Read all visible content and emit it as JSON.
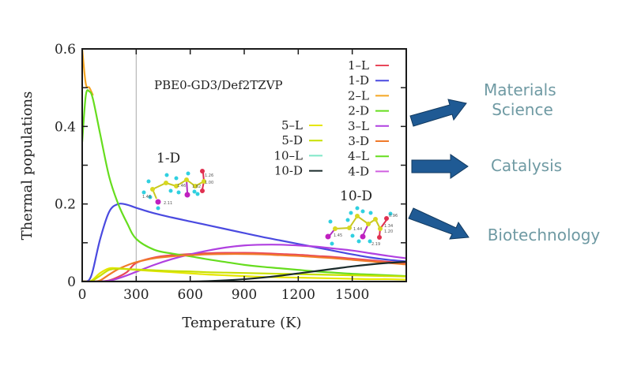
{
  "chart_data": {
    "type": "line",
    "title": "",
    "annotation": "PBE0-GD3/Def2TZVP",
    "xlabel": "Temperature (K)",
    "ylabel": "Thermal populations",
    "xlim": [
      0,
      1800
    ],
    "ylim": [
      0,
      0.6
    ],
    "xticks": [
      0,
      300,
      600,
      900,
      1200,
      1500
    ],
    "xtick_labels": [
      "0",
      "300",
      "600",
      "900",
      "1200",
      "1500"
    ],
    "yticks": [
      0,
      0.2,
      0.4,
      0.6
    ],
    "ytick_labels": [
      "0",
      "0.2",
      "0.4",
      "0.6"
    ],
    "yminor_ticks": [
      0.1,
      0.3,
      0.5
    ],
    "vertical_reference_line": 300,
    "grid": false,
    "legend_position": "top-right",
    "x": [
      0,
      20,
      40,
      60,
      100,
      150,
      200,
      250,
      300,
      400,
      500,
      600,
      700,
      800,
      900,
      1000,
      1100,
      1200,
      1300,
      1400,
      1500,
      1600,
      1700,
      1800
    ],
    "series": [
      {
        "name": "1–L",
        "color": "#e8475a",
        "values": [
          0,
          0,
          0,
          0,
          0,
          0.003,
          0.012,
          0.025,
          0.048,
          0.062,
          0.068,
          0.071,
          0.073,
          0.074,
          0.074,
          0.073,
          0.071,
          0.069,
          0.066,
          0.063,
          0.059,
          0.055,
          0.051,
          0.047
        ]
      },
      {
        "name": "1-D",
        "color": "#4a4ae0",
        "values": [
          0,
          0,
          0.005,
          0.03,
          0.11,
          0.18,
          0.2,
          0.198,
          0.19,
          0.176,
          0.165,
          0.155,
          0.145,
          0.135,
          0.125,
          0.115,
          0.106,
          0.097,
          0.088,
          0.079,
          0.07,
          0.062,
          0.056,
          0.052
        ]
      },
      {
        "name": "2–L",
        "color": "#f5a623",
        "values": [
          0.6,
          0.51,
          0.5,
          0.48,
          0,
          0,
          0,
          0,
          0,
          0,
          0,
          0,
          0,
          0,
          0,
          0,
          0,
          0,
          0,
          0,
          0,
          0,
          0,
          0
        ]
      },
      {
        "name": "2-D",
        "color": "#66dd1e",
        "values": [
          0.36,
          0.48,
          0.49,
          0.47,
          0.38,
          0.27,
          0.2,
          0.15,
          0.11,
          0.082,
          0.072,
          0.065,
          0.057,
          0.05,
          0.043,
          0.038,
          0.034,
          0.03,
          0.026,
          0.023,
          0.02,
          0.018,
          0.016,
          0.014
        ]
      },
      {
        "name": "3–L",
        "color": "#b040e0",
        "values": [
          0,
          0,
          0,
          0,
          0,
          0.002,
          0.008,
          0.016,
          0.025,
          0.043,
          0.058,
          0.07,
          0.08,
          0.088,
          0.093,
          0.095,
          0.095,
          0.093,
          0.09,
          0.085,
          0.08,
          0.073,
          0.066,
          0.06
        ]
      },
      {
        "name": "3-D",
        "color": "#f07a2a",
        "values": [
          0,
          0,
          0,
          0,
          0.003,
          0.018,
          0.032,
          0.042,
          0.05,
          0.06,
          0.065,
          0.068,
          0.07,
          0.071,
          0.071,
          0.07,
          0.068,
          0.066,
          0.063,
          0.06,
          0.056,
          0.052,
          0.048,
          0.044
        ]
      },
      {
        "name": "4–L",
        "color": "#66dd1e",
        "values": []
      },
      {
        "name": "4-D",
        "color": "#d060e0",
        "values": []
      },
      {
        "name": "5–L",
        "color": "#e6e600",
        "values": [
          0,
          0,
          0,
          0.005,
          0.022,
          0.034,
          0.034,
          0.032,
          0.03,
          0.027,
          0.024,
          0.021,
          0.018,
          0.016,
          0.014,
          0.012,
          0.011,
          0.01,
          0.009,
          0.008,
          0.007,
          0.006,
          0.006,
          0.005
        ]
      },
      {
        "name": "5-D",
        "color": "#c8e000",
        "values": [
          0,
          0,
          0,
          0.003,
          0.015,
          0.03,
          0.033,
          0.032,
          0.031,
          0.029,
          0.027,
          0.026,
          0.024,
          0.023,
          0.022,
          0.021,
          0.02,
          0.019,
          0.018,
          0.017,
          0.016,
          0.015,
          0.014,
          0.013
        ]
      },
      {
        "name": "10–L",
        "color": "#7fe8c8",
        "values": []
      },
      {
        "name": "10-D",
        "color": "#1a2a2a",
        "values": [
          0,
          0,
          0,
          0,
          0,
          0,
          0,
          0,
          0,
          0,
          0,
          0,
          0.001,
          0.003,
          0.006,
          0.01,
          0.015,
          0.021,
          0.027,
          0.033,
          0.039,
          0.044,
          0.048,
          0.051
        ]
      }
    ],
    "legend_right": [
      "1–L",
      "1-D",
      "2–L",
      "2-D",
      "3–L",
      "3-D",
      "4–L",
      "4-D"
    ],
    "legend_left": [
      "5–L",
      "5-D",
      "10–L",
      "10-D"
    ],
    "molecules": [
      {
        "label": "1-D",
        "bond_lengths": [
          "1.46",
          "2.11",
          "1.46",
          "1.82",
          "1.26",
          "1.00"
        ]
      },
      {
        "label": "10-D",
        "bond_lengths": [
          "1.45",
          "1.44",
          "0.96",
          "1.34",
          "1.20",
          "2.19"
        ]
      }
    ]
  },
  "applications": [
    {
      "label_lines": [
        "Materials",
        "Science"
      ]
    },
    {
      "label_lines": [
        "Catalysis"
      ]
    },
    {
      "label_lines": [
        "Biotechnology"
      ]
    }
  ],
  "arrow_color": "#1f5a94"
}
